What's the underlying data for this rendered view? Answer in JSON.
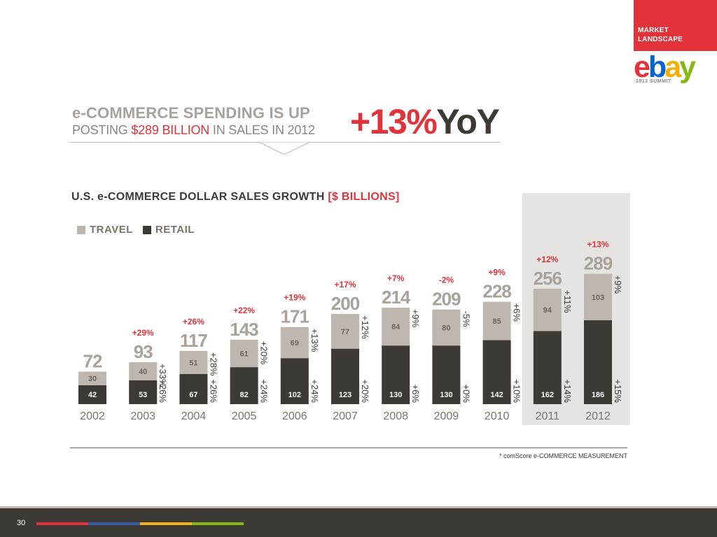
{
  "header": {
    "section_line1": "MARKET",
    "section_line2": "LANDSCAPE",
    "logo_letters": [
      "e",
      "b",
      "a",
      "y"
    ],
    "logo_sub": "2013 SUMMIT",
    "accent_color": "#e2333a"
  },
  "headline": {
    "line1": "e-COMMERCE SPENDING IS UP",
    "line2_pre": "POSTING ",
    "line2_highlight": "$289 BILLION",
    "line2_post": " IN SALES IN 2012",
    "yoy_pct": "+13%",
    "yoy_label": "YoY"
  },
  "chart_title": {
    "main": "U.S. e-COMMERCE DOLLAR SALES GROWTH ",
    "unit": "[$ BILLIONS]"
  },
  "legend": [
    {
      "label": "TRAVEL",
      "color": "#bdb7b0"
    },
    {
      "label": "RETAIL",
      "color": "#3d3935"
    }
  ],
  "chart_data": {
    "type": "bar",
    "stacked": true,
    "categories": [
      "2002",
      "2003",
      "2004",
      "2005",
      "2006",
      "2007",
      "2008",
      "2009",
      "2010",
      "2011",
      "2012"
    ],
    "series": [
      {
        "name": "RETAIL",
        "color": "#3d3935",
        "values": [
          42,
          53,
          67,
          82,
          102,
          123,
          130,
          130,
          142,
          162,
          186
        ]
      },
      {
        "name": "TRAVEL",
        "color": "#bdb7b0",
        "values": [
          30,
          40,
          51,
          61,
          69,
          77,
          84,
          80,
          85,
          94,
          103
        ]
      }
    ],
    "totals": [
      72,
      93,
      117,
      143,
      171,
      200,
      214,
      209,
      228,
      256,
      289
    ],
    "total_growth": [
      "",
      "+29%",
      "+26%",
      "+22%",
      "+19%",
      "+17%",
      "+7%",
      "-2%",
      "+9%",
      "+12%",
      "+13%"
    ],
    "retail_growth": [
      "",
      "+26%",
      "+26%",
      "+24%",
      "+24%",
      "+20%",
      "+6%",
      "+0%",
      "+10%",
      "+14%",
      "+15%"
    ],
    "travel_growth": [
      "",
      "+33%",
      "+28%",
      "+20%",
      "+13%",
      "+12%",
      "+9%",
      "-5%",
      "+6%",
      "+11%",
      "+9%"
    ],
    "highlighted_categories": [
      "2011",
      "2012"
    ],
    "highlight_color": "#e6e4e2",
    "growth_color": "#e2333a",
    "ylim": [
      0,
      300
    ],
    "grid": false,
    "legend_position": "top-left"
  },
  "footnote": "* comScore e-COMMERCE MEASUREMENT",
  "footer": {
    "page_number": "30",
    "stripe_colors": [
      "#e2333a",
      "#3a5ca8",
      "#f0b21e",
      "#86b817"
    ]
  }
}
